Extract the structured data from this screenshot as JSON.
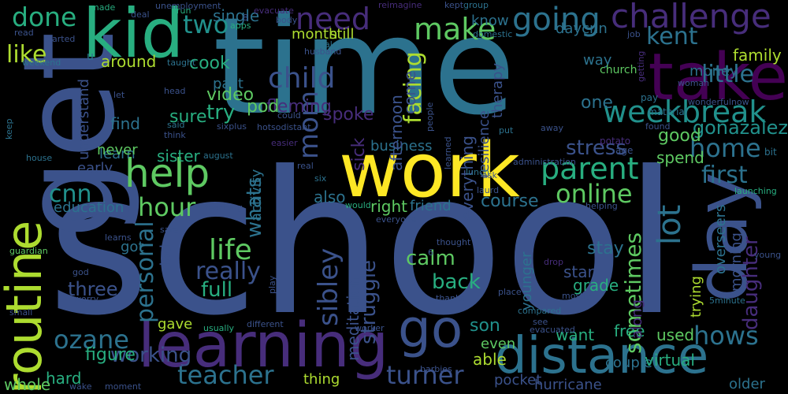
{
  "background": "#000000",
  "palette": {
    "c1": "#440154",
    "c2": "#472d7b",
    "c3": "#3b528b",
    "c4": "#2c728e",
    "c5": "#21918c",
    "c6": "#28ae80",
    "c7": "#5ec962",
    "c8": "#addc30",
    "c9": "#fde725"
  },
  "words": [
    {
      "text": "school",
      "color": "c3"
    },
    {
      "text": "time",
      "color": "c4"
    },
    {
      "text": "get",
      "color": "c3"
    },
    {
      "text": "work",
      "color": "c9"
    },
    {
      "text": "kid",
      "color": "c6"
    },
    {
      "text": "learning",
      "color": "c2"
    },
    {
      "text": "take",
      "color": "c1"
    },
    {
      "text": "day",
      "color": "c3"
    },
    {
      "text": "distance",
      "color": "c4"
    },
    {
      "text": "routine",
      "color": "c8"
    },
    {
      "text": "go",
      "color": "c3"
    },
    {
      "text": "challenge",
      "color": "c2"
    },
    {
      "text": "help",
      "color": "c7"
    },
    {
      "text": "going",
      "color": "c4"
    },
    {
      "text": "make",
      "color": "c7"
    },
    {
      "text": "need",
      "color": "c2"
    },
    {
      "text": "done",
      "color": "c6"
    },
    {
      "text": "two",
      "color": "c5"
    },
    {
      "text": "child",
      "color": "c3"
    },
    {
      "text": "parent",
      "color": "c6"
    },
    {
      "text": "weekbreak",
      "color": "c5"
    },
    {
      "text": "like",
      "color": "c8"
    },
    {
      "text": "cnn",
      "color": "c5"
    },
    {
      "text": "life",
      "color": "c7"
    },
    {
      "text": "teacher",
      "color": "c4"
    },
    {
      "text": "turner",
      "color": "c3"
    },
    {
      "text": "online",
      "color": "c7"
    },
    {
      "text": "home",
      "color": "c4"
    },
    {
      "text": "first",
      "color": "c4"
    },
    {
      "text": "hour",
      "color": "c7"
    },
    {
      "text": "ozane",
      "color": "c4"
    },
    {
      "text": "hows",
      "color": "c4"
    },
    {
      "text": "mom",
      "color": "c3"
    },
    {
      "text": "facing",
      "color": "c8"
    },
    {
      "text": "kent",
      "color": "c4"
    },
    {
      "text": "little",
      "color": "c4"
    },
    {
      "text": "lot",
      "color": "c4"
    },
    {
      "text": "sibley",
      "color": "c3"
    },
    {
      "text": "really",
      "color": "c3"
    },
    {
      "text": "full",
      "color": "c6"
    },
    {
      "text": "personal",
      "color": "c4"
    },
    {
      "text": "whats",
      "color": "c4"
    },
    {
      "text": "working",
      "color": "c3"
    },
    {
      "text": "sometimes",
      "color": "c7"
    },
    {
      "text": "daughter",
      "color": "c2"
    },
    {
      "text": "gonazalez",
      "color": "c5"
    },
    {
      "text": "good",
      "color": "c7"
    },
    {
      "text": "stress",
      "color": "c3"
    },
    {
      "text": "son",
      "color": "c5"
    },
    {
      "text": "back",
      "color": "c6"
    },
    {
      "text": "fleming",
      "color": "c2"
    },
    {
      "text": "three",
      "color": "c3"
    },
    {
      "text": "figure",
      "color": "c6"
    },
    {
      "text": "one",
      "color": "c4"
    },
    {
      "text": "struggle",
      "color": "c3"
    },
    {
      "text": "hard",
      "color": "c6"
    },
    {
      "text": "whole",
      "color": "c7"
    },
    {
      "text": "calm",
      "color": "c7"
    },
    {
      "text": "course",
      "color": "c4"
    },
    {
      "text": "start",
      "color": "c3"
    },
    {
      "text": "stay",
      "color": "c4"
    },
    {
      "text": "grade",
      "color": "c6"
    },
    {
      "text": "try",
      "color": "c6"
    },
    {
      "text": "sure",
      "color": "c6"
    },
    {
      "text": "video",
      "color": "c7"
    },
    {
      "text": "pod",
      "color": "c7"
    },
    {
      "text": "spoke",
      "color": "c2"
    },
    {
      "text": "sick",
      "color": "c2"
    },
    {
      "text": "business",
      "color": "c4"
    },
    {
      "text": "right",
      "color": "c7"
    },
    {
      "text": "also",
      "color": "c4"
    },
    {
      "text": "friend",
      "color": "c4"
    },
    {
      "text": "find",
      "color": "c4"
    },
    {
      "text": "cook",
      "color": "c6"
    },
    {
      "text": "single",
      "color": "c4"
    },
    {
      "text": "month",
      "color": "c8"
    },
    {
      "text": "still",
      "color": "c8"
    },
    {
      "text": "around",
      "color": "c8"
    },
    {
      "text": "know",
      "color": "c4"
    },
    {
      "text": "daycnn",
      "color": "c4"
    },
    {
      "text": "way",
      "color": "c4"
    },
    {
      "text": "family",
      "color": "c8"
    },
    {
      "text": "money",
      "color": "c4"
    },
    {
      "text": "spend",
      "color": "c7"
    },
    {
      "text": "used",
      "color": "c7"
    },
    {
      "text": "free",
      "color": "c6"
    },
    {
      "text": "want",
      "color": "c6"
    },
    {
      "text": "able",
      "color": "c8"
    },
    {
      "text": "even",
      "color": "c7"
    },
    {
      "text": "thing",
      "color": "c8"
    },
    {
      "text": "meditation",
      "color": "c3"
    },
    {
      "text": "everything",
      "color": "c3"
    },
    {
      "text": "afternoon",
      "color": "c3"
    },
    {
      "text": "come",
      "color": "c3"
    },
    {
      "text": "resilience",
      "color": "c3"
    },
    {
      "text": "therapy",
      "color": "c3"
    },
    {
      "text": "sister",
      "color": "c6"
    },
    {
      "text": "learn",
      "color": "c4"
    },
    {
      "text": "early",
      "color": "c3"
    },
    {
      "text": "never",
      "color": "c7"
    },
    {
      "text": "understand",
      "color": "c3"
    },
    {
      "text": "past",
      "color": "c4"
    },
    {
      "text": "activity",
      "color": "c4"
    },
    {
      "text": "education",
      "color": "c4"
    },
    {
      "text": "got",
      "color": "c4"
    },
    {
      "text": "dad",
      "color": "c3"
    },
    {
      "text": "gave",
      "color": "c8"
    },
    {
      "text": "younger",
      "color": "c4"
    },
    {
      "text": "couple",
      "color": "c4"
    },
    {
      "text": "hurricane",
      "color": "c3"
    },
    {
      "text": "virtual",
      "color": "c6"
    },
    {
      "text": "pocket",
      "color": "c3"
    },
    {
      "text": "older",
      "color": "c4"
    },
    {
      "text": "trying",
      "color": "c8"
    },
    {
      "text": "overseers",
      "color": "c4"
    },
    {
      "text": "morning",
      "color": "c3"
    },
    {
      "text": "along",
      "color": "c2"
    },
    {
      "text": "church",
      "color": "c7"
    },
    {
      "text": "pay",
      "color": "c4"
    },
    {
      "text": "age",
      "color": "c3"
    },
    {
      "text": "potato",
      "color": "c2"
    },
    {
      "text": "bit",
      "color": "c4"
    },
    {
      "text": "material",
      "color": "c4"
    },
    {
      "text": "u",
      "color": "c4"
    },
    {
      "text": "made",
      "color": "c6"
    },
    {
      "text": "deal",
      "color": "c3"
    },
    {
      "text": "run",
      "color": "c6"
    },
    {
      "text": "unemployment",
      "color": "c3"
    },
    {
      "text": "evacuate",
      "color": "c2"
    },
    {
      "text": "body",
      "color": "c3"
    },
    {
      "text": "reimagine",
      "color": "c2"
    },
    {
      "text": "kept",
      "color": "c3"
    },
    {
      "text": "group",
      "color": "c4"
    },
    {
      "text": "read",
      "color": "c3"
    },
    {
      "text": "started",
      "color": "c3"
    },
    {
      "text": "weekend",
      "color": "c4"
    },
    {
      "text": "apps",
      "color": "c6"
    },
    {
      "text": "husband",
      "color": "c3"
    },
    {
      "text": "alone",
      "color": "c4"
    },
    {
      "text": "domestic",
      "color": "c4"
    },
    {
      "text": "job",
      "color": "c3"
    },
    {
      "text": "taught",
      "color": "c4"
    },
    {
      "text": "let",
      "color": "c3"
    },
    {
      "text": "head",
      "color": "c3"
    },
    {
      "text": "could",
      "color": "c3"
    },
    {
      "text": "sixplus",
      "color": "c3"
    },
    {
      "text": "said",
      "color": "c4"
    },
    {
      "text": "think",
      "color": "c3"
    },
    {
      "text": "august",
      "color": "c4"
    },
    {
      "text": "keep",
      "color": "c4"
    },
    {
      "text": "house",
      "color": "c4"
    },
    {
      "text": "easier",
      "color": "c2"
    },
    {
      "text": "real",
      "color": "c3"
    },
    {
      "text": "six",
      "color": "c4"
    },
    {
      "text": "learned",
      "color": "c3"
    },
    {
      "text": "people",
      "color": "c3"
    },
    {
      "text": "lunch",
      "color": "c4"
    },
    {
      "text": "ask",
      "color": "c3"
    },
    {
      "text": "administration",
      "color": "c3"
    },
    {
      "text": "laurd",
      "color": "c3"
    },
    {
      "text": "launching",
      "color": "c6"
    },
    {
      "text": "woman",
      "color": "c3"
    },
    {
      "text": "found",
      "color": "c3"
    },
    {
      "text": "away",
      "color": "c3"
    },
    {
      "text": "put",
      "color": "c4"
    },
    {
      "text": "wonderfulnow",
      "color": "c3"
    },
    {
      "text": "getting",
      "color": "c2"
    },
    {
      "text": "teaching",
      "color": "c3"
    },
    {
      "text": "would",
      "color": "c6"
    },
    {
      "text": "everyone",
      "color": "c3"
    },
    {
      "text": "helping",
      "color": "c3"
    },
    {
      "text": "guardian",
      "color": "c7"
    },
    {
      "text": "safe",
      "color": "c3"
    },
    {
      "text": "learns",
      "color": "c3"
    },
    {
      "text": "god",
      "color": "c3"
    },
    {
      "text": "thought",
      "color": "c3"
    },
    {
      "text": "drop",
      "color": "c2"
    },
    {
      "text": "place",
      "color": "c3"
    },
    {
      "text": "mostly",
      "color": "c3"
    },
    {
      "text": "thanks",
      "color": "c3"
    },
    {
      "text": "compared",
      "color": "c4"
    },
    {
      "text": "young",
      "color": "c3"
    },
    {
      "text": "5minute",
      "color": "c4"
    },
    {
      "text": "worry",
      "color": "c3"
    },
    {
      "text": "small",
      "color": "c3"
    },
    {
      "text": "usually",
      "color": "c6"
    },
    {
      "text": "different",
      "color": "c3"
    },
    {
      "text": "worker",
      "color": "c3"
    },
    {
      "text": "evacuated",
      "color": "c3"
    },
    {
      "text": "barbies",
      "color": "c3"
    },
    {
      "text": "wake",
      "color": "c3"
    },
    {
      "text": "moment",
      "color": "c3"
    },
    {
      "text": "see",
      "color": "c3"
    },
    {
      "text": "play",
      "color": "c3"
    },
    {
      "text": "hotsodistant",
      "color": "c3"
    },
    {
      "text": "6",
      "color": "c3"
    },
    {
      "text": "8",
      "color": "c3"
    }
  ]
}
